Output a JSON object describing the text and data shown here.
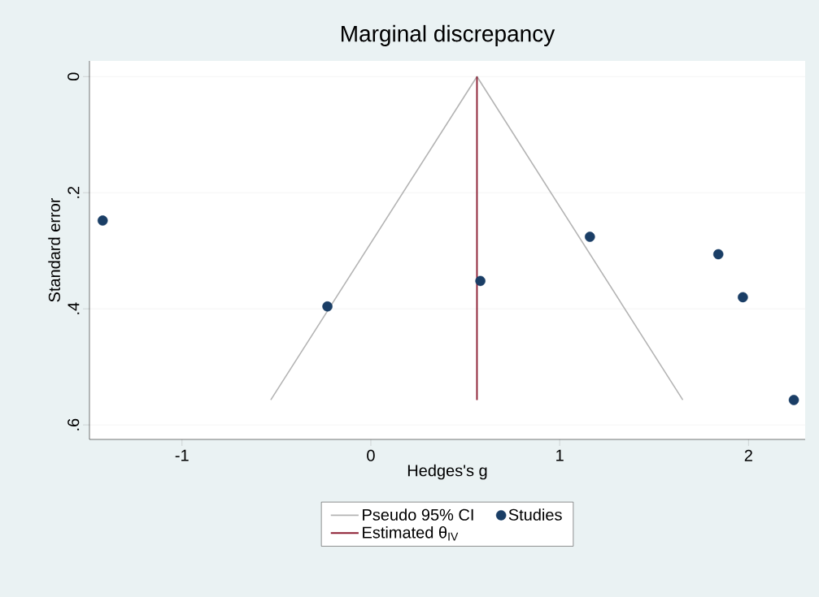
{
  "chart_data": {
    "type": "scatter",
    "title": "Marginal discrepancy",
    "xlabel": "Hedges's g",
    "ylabel": "Standard error",
    "series": [
      {
        "name": "Pseudo 95% CI",
        "type": "line",
        "color": "#b4b4b4",
        "marker": "none",
        "x": [
          -0.53,
          0.562,
          1.652
        ],
        "values": [
          0.557,
          0,
          0.557
        ]
      },
      {
        "name": "Studies",
        "color": "#1a3e66",
        "marker": "circle",
        "x": [
          -1.42,
          -0.23,
          0.58,
          1.16,
          1.84,
          1.97,
          2.24
        ],
        "values": [
          0.248,
          0.396,
          0.352,
          0.276,
          0.306,
          0.38,
          0.557
        ]
      },
      {
        "name": "Estimated θ$_{IV}$",
        "type": "line",
        "color": "#8b1c31",
        "marker": "none",
        "x": [
          0.562,
          0.562
        ],
        "values": [
          0,
          0.557
        ]
      }
    ],
    "xlim": [
      -1.49,
      2.3
    ],
    "ylim": [
      0.625,
      -0.027
    ],
    "xticks": [
      -1,
      0,
      1,
      2
    ],
    "yticks": [
      0,
      {
        "value": 0.2,
        "label": ".2"
      },
      {
        "value": 0.4,
        "label": ".4"
      },
      {
        "value": 0.6,
        "label": ".6"
      }
    ],
    "grid": "y",
    "legend": "bottom"
  }
}
